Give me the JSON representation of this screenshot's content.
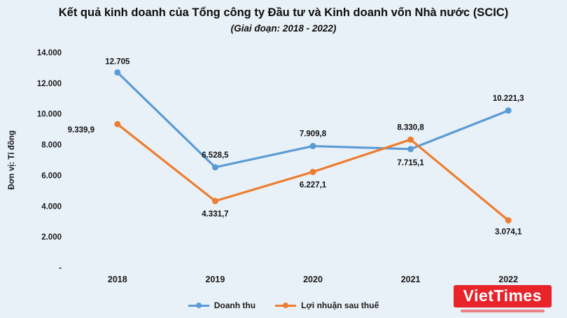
{
  "header": {
    "title": "Kết quả kinh doanh của Tổng công ty Đầu tư và Kinh doanh vốn Nhà nước (SCIC)",
    "subtitle": "(Giai đoạn: 2018 - 2022)"
  },
  "chart_data": {
    "type": "line",
    "title": "Kết quả kinh doanh của Tổng công ty Đầu tư và Kinh doanh vốn Nhà nước (SCIC)",
    "subtitle": "(Giai đoạn: 2018 - 2022)",
    "ylabel": "Đơn vị: Tỉ đồng",
    "xlabel": "",
    "ylim": [
      0,
      14000
    ],
    "grid": false,
    "legend_position": "bottom",
    "y_ticks": [
      {
        "value": 14000,
        "label": "14.000"
      },
      {
        "value": 12000,
        "label": "12.000"
      },
      {
        "value": 10000,
        "label": "10.000"
      },
      {
        "value": 8000,
        "label": "8.000"
      },
      {
        "value": 6000,
        "label": "6.000"
      },
      {
        "value": 4000,
        "label": "4.000"
      },
      {
        "value": 2000,
        "label": "2.000"
      },
      {
        "value": 0,
        "label": "-"
      }
    ],
    "categories": [
      "2018",
      "2019",
      "2020",
      "2021",
      "2022"
    ],
    "series": [
      {
        "name": "Doanh thu",
        "color": "#5B9BD5",
        "values": [
          12705,
          6528.5,
          7909.8,
          7715.1,
          10221.3
        ],
        "labels": [
          "12.705",
          "6.528,5",
          "7.909,8",
          "7.715,1",
          "10.221,3"
        ],
        "label_offsets": [
          [
            0,
            -12
          ],
          [
            0,
            -14
          ],
          [
            0,
            -14
          ],
          [
            0,
            23
          ],
          [
            0,
            -14
          ]
        ]
      },
      {
        "name": "Lợi nhuận sau thuế",
        "color": "#ED7D31",
        "values": [
          9339.9,
          4331.7,
          6227.1,
          8330.8,
          3074.1
        ],
        "labels": [
          "9.339,9",
          "4.331,7",
          "6.227,1",
          "8.330,8",
          "3.074,1"
        ],
        "label_offsets": [
          [
            -52,
            12
          ],
          [
            0,
            22
          ],
          [
            0,
            22
          ],
          [
            0,
            -14
          ],
          [
            0,
            20
          ]
        ]
      }
    ]
  },
  "watermark": {
    "text": "VietTimes",
    "color": "#e8232a"
  }
}
